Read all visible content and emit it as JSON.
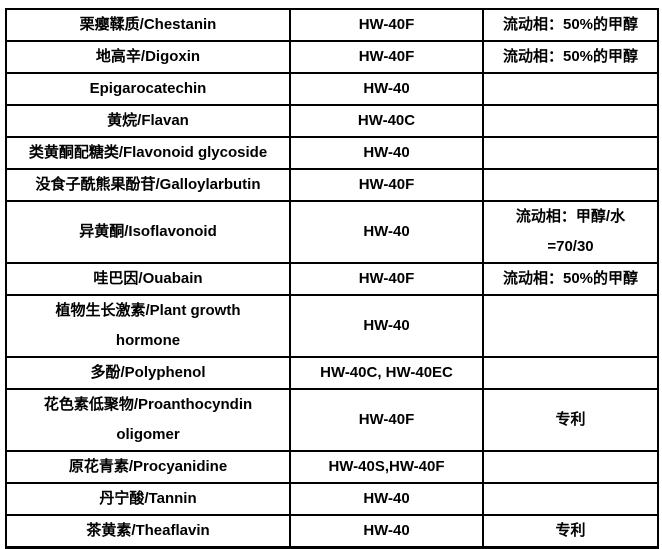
{
  "colors": {
    "border": "#000000",
    "text": "#000000",
    "background": "#ffffff"
  },
  "table": {
    "columns": [
      "compound",
      "resin",
      "note"
    ],
    "rows": [
      {
        "compound": "栗瘿鞣质/Chestanin",
        "resin": "HW-40F",
        "note": "流动相：50%的甲醇",
        "tall": false
      },
      {
        "compound": "地高辛/Digoxin",
        "resin": "HW-40F",
        "note": "流动相：50%的甲醇",
        "tall": false
      },
      {
        "compound": "Epigarocatechin",
        "resin": "HW-40",
        "note": "",
        "tall": false
      },
      {
        "compound": "黄烷/Flavan",
        "resin": "HW-40C",
        "note": "",
        "tall": false
      },
      {
        "compound": "类黄酮配糖类/Flavonoid glycoside",
        "resin": "HW-40",
        "note": "",
        "tall": false
      },
      {
        "compound": "没食子酰熊果酚苷/Galloylarbutin",
        "resin": "HW-40F",
        "note": "",
        "tall": false
      },
      {
        "compound": "异黄酮/Isoflavonoid",
        "resin": "HW-40",
        "note": "流动相：甲醇/水\n=70/30",
        "tall": true
      },
      {
        "compound": "哇巴因/Ouabain",
        "resin": "HW-40F",
        "note": "流动相：50%的甲醇",
        "tall": false
      },
      {
        "compound": "植物生长激素/Plant growth\nhormone",
        "resin": "HW-40",
        "note": "",
        "tall": true
      },
      {
        "compound": "多酚/Polyphenol",
        "resin": "HW-40C, HW-40EC",
        "note": "",
        "tall": false
      },
      {
        "compound": "花色素低聚物/Proanthocyndin\noligomer",
        "resin": "HW-40F",
        "note": "专利",
        "tall": true
      },
      {
        "compound": "原花青素/Procyanidine",
        "resin": "HW-40S,HW-40F",
        "note": "",
        "tall": false
      },
      {
        "compound": "丹宁酸/Tannin",
        "resin": "HW-40",
        "note": "",
        "tall": false
      },
      {
        "compound": "茶黄素/Theaflavin",
        "resin": "HW-40",
        "note": "专利",
        "tall": false
      }
    ]
  }
}
